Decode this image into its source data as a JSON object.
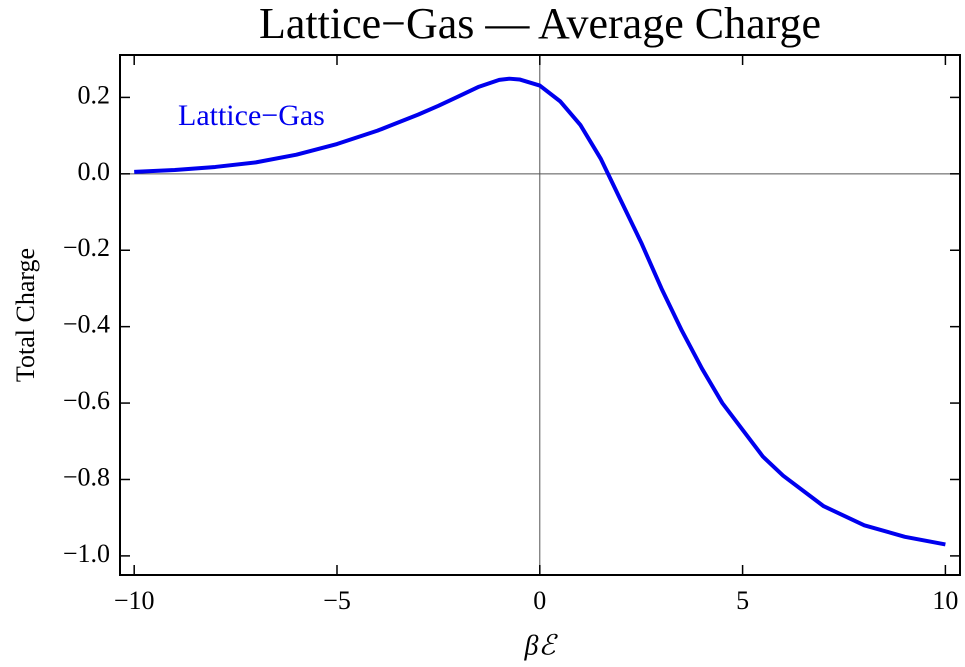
{
  "chart_data": {
    "type": "line",
    "title": "Lattice−Gas — Average Charge",
    "xlabel": "βℰ",
    "ylabel": "Total Charge",
    "x": [
      -10,
      -9,
      -8,
      -7,
      -6,
      -5,
      -4,
      -3,
      -2.5,
      -2,
      -1.5,
      -1,
      -0.75,
      -0.5,
      0,
      0.5,
      1,
      1.5,
      2,
      2.5,
      3,
      3.5,
      4,
      4.5,
      5,
      5.5,
      6,
      7,
      8,
      9,
      10
    ],
    "series": [
      {
        "name": "Lattice−Gas",
        "color": "#0000ee",
        "values": [
          0.005,
          0.01,
          0.018,
          0.03,
          0.05,
          0.078,
          0.113,
          0.155,
          0.178,
          0.203,
          0.228,
          0.246,
          0.249,
          0.247,
          0.231,
          0.19,
          0.128,
          0.04,
          -0.07,
          -0.18,
          -0.3,
          -0.41,
          -0.51,
          -0.6,
          -0.67,
          -0.74,
          -0.79,
          -0.87,
          -0.92,
          -0.95,
          -0.97
        ]
      }
    ],
    "xlim": [
      -10.35,
      10.36
    ],
    "ylim": [
      -1.05,
      0.311
    ],
    "xticks": [
      {
        "value": -10,
        "label": "−10"
      },
      {
        "value": -5,
        "label": "−5"
      },
      0,
      5,
      10
    ],
    "yticks": [
      {
        "value": -1.0,
        "label": "−1.0"
      },
      {
        "value": -0.8,
        "label": "−0.8"
      },
      {
        "value": -0.6,
        "label": "−0.6"
      },
      {
        "value": -0.4,
        "label": "−0.4"
      },
      {
        "value": -0.2,
        "label": "−0.2"
      },
      {
        "value": 0,
        "label": "0.0"
      },
      0.2
    ]
  }
}
